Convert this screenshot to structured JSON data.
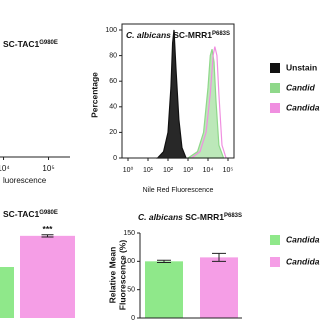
{
  "chart_data": [
    {
      "type": "partial-histogram",
      "title": "SC-TAC1",
      "title_superscript": "G980E",
      "xlabel": "luorescence",
      "log_x": true,
      "xlim": [
        5000,
        300000
      ],
      "xticks": [
        {
          "value": 10000,
          "label": "10⁴"
        },
        {
          "value": 100000,
          "label": "10⁵"
        }
      ]
    },
    {
      "type": "histogram-overlay",
      "title": "C. albicans",
      "title_rest": "SC-MRR1",
      "title_superscript": "P683S",
      "xlabel": "Nile Red Fluorescence",
      "ylabel": "Percentage",
      "log_x": true,
      "xlim": [
        1,
        100000
      ],
      "xticks": [
        {
          "value": 1,
          "label": "10⁰"
        },
        {
          "value": 10,
          "label": "10¹"
        },
        {
          "value": 100,
          "label": "10²"
        },
        {
          "value": 1000,
          "label": "10³"
        },
        {
          "value": 10000,
          "label": "10⁴"
        },
        {
          "value": 100000,
          "label": "10⁵"
        }
      ],
      "ylim": [
        0,
        100
      ],
      "yticks": [
        0,
        20,
        40,
        60,
        80,
        100
      ],
      "series": [
        {
          "name": "Unstain",
          "color": "#111111",
          "fill": true,
          "x": [
            30,
            60,
            100,
            140,
            170,
            200,
            250,
            350,
            500,
            800
          ],
          "values": [
            0,
            5,
            20,
            55,
            90,
            100,
            70,
            30,
            8,
            0
          ]
        },
        {
          "name": "Candid",
          "color": "#8fd88a",
          "fill": true,
          "x": [
            1000,
            3000,
            6000,
            10000,
            13000,
            16000,
            20000,
            25000,
            35000,
            60000
          ],
          "values": [
            0,
            5,
            20,
            55,
            80,
            85,
            75,
            45,
            10,
            0
          ]
        },
        {
          "name": "Candida",
          "color": "#f08fe0",
          "fill": false,
          "x": [
            1500,
            4000,
            8000,
            13000,
            18000,
            22000,
            28000,
            35000,
            50000,
            80000
          ],
          "values": [
            0,
            5,
            20,
            50,
            80,
            87,
            80,
            50,
            10,
            0
          ]
        }
      ]
    },
    {
      "type": "partial-bar",
      "title": "SC-TAC1",
      "title_superscript": "G980E",
      "annotation": "***",
      "ylim": [
        0,
        150
      ],
      "series": [
        {
          "color": "#8fe88a",
          "values": [
            90
          ]
        },
        {
          "color": "#f59ee6",
          "values": [
            145
          ],
          "errors": [
            2
          ]
        }
      ]
    },
    {
      "type": "bar",
      "title": "C. albicans",
      "title_rest": "SC-MRR1",
      "title_superscript": "P683S",
      "ylabel": [
        "Relative Mean",
        "Fluorescence (%)"
      ],
      "ylim": [
        0,
        150
      ],
      "yticks": [
        0,
        50,
        100,
        150
      ],
      "series": [
        {
          "name": "Candida",
          "color": "#8fe88a",
          "values": [
            100
          ],
          "errors": [
            2
          ]
        },
        {
          "name": "Candida",
          "color": "#f59ee6",
          "values": [
            107
          ],
          "errors": [
            7
          ]
        }
      ]
    }
  ]
}
